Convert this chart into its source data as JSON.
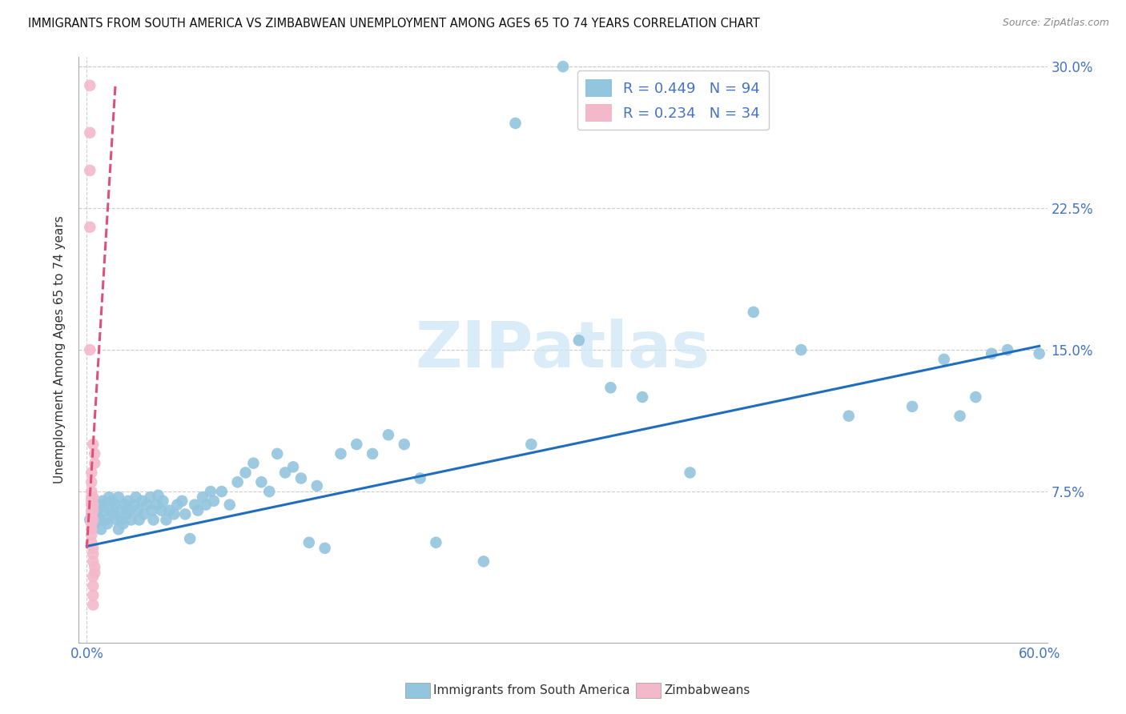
{
  "title": "IMMIGRANTS FROM SOUTH AMERICA VS ZIMBABWEAN UNEMPLOYMENT AMONG AGES 65 TO 74 YEARS CORRELATION CHART",
  "source": "Source: ZipAtlas.com",
  "ylabel": "Unemployment Among Ages 65 to 74 years",
  "legend1_label": "Immigrants from South America",
  "legend2_label": "Zimbabweans",
  "R_blue": 0.449,
  "N_blue": 94,
  "R_pink": 0.234,
  "N_pink": 34,
  "blue_color": "#92c5de",
  "pink_color": "#f4b8cb",
  "watermark_color": "#d0e8f5",
  "watermark_text": "ZIPatlas",
  "trend_blue_color": "#1f6dbf",
  "trend_pink_color": "#e0507a",
  "grid_color": "#cccccc",
  "axis_color": "#aaaaaa",
  "text_color": "#333333",
  "label_color": "#4472c4",
  "source_color": "#888888",
  "xlim": [
    0.0,
    0.6
  ],
  "ylim": [
    0.0,
    0.3
  ],
  "x_ticks": [
    0.0,
    0.6
  ],
  "x_tick_labels": [
    "0.0%",
    "60.0%"
  ],
  "y_ticks": [
    0.0,
    0.075,
    0.15,
    0.225,
    0.3
  ],
  "y_tick_labels": [
    "",
    "7.5%",
    "15.0%",
    "22.5%",
    "30.0%"
  ],
  "blue_trend_x": [
    0.0,
    0.6
  ],
  "blue_trend_y": [
    0.046,
    0.152
  ],
  "pink_trend_x": [
    0.0,
    0.018
  ],
  "pink_trend_y": [
    0.045,
    0.29
  ],
  "blue_x": [
    0.002,
    0.003,
    0.005,
    0.006,
    0.007,
    0.008,
    0.009,
    0.01,
    0.01,
    0.011,
    0.012,
    0.013,
    0.014,
    0.015,
    0.016,
    0.017,
    0.018,
    0.019,
    0.02,
    0.02,
    0.021,
    0.022,
    0.023,
    0.024,
    0.025,
    0.026,
    0.027,
    0.028,
    0.03,
    0.031,
    0.032,
    0.033,
    0.035,
    0.036,
    0.038,
    0.04,
    0.041,
    0.042,
    0.044,
    0.045,
    0.047,
    0.048,
    0.05,
    0.052,
    0.055,
    0.057,
    0.06,
    0.062,
    0.065,
    0.068,
    0.07,
    0.073,
    0.075,
    0.078,
    0.08,
    0.085,
    0.09,
    0.095,
    0.1,
    0.105,
    0.11,
    0.115,
    0.12,
    0.125,
    0.13,
    0.135,
    0.14,
    0.145,
    0.15,
    0.16,
    0.17,
    0.18,
    0.19,
    0.2,
    0.21,
    0.22,
    0.25,
    0.27,
    0.3,
    0.35,
    0.38,
    0.42,
    0.45,
    0.48,
    0.52,
    0.55,
    0.57,
    0.58,
    0.6,
    0.28,
    0.31,
    0.33,
    0.54,
    0.56
  ],
  "blue_y": [
    0.06,
    0.062,
    0.058,
    0.063,
    0.065,
    0.06,
    0.055,
    0.068,
    0.07,
    0.065,
    0.06,
    0.058,
    0.072,
    0.065,
    0.07,
    0.063,
    0.068,
    0.06,
    0.055,
    0.072,
    0.065,
    0.06,
    0.058,
    0.068,
    0.063,
    0.07,
    0.065,
    0.06,
    0.068,
    0.072,
    0.065,
    0.06,
    0.07,
    0.063,
    0.068,
    0.072,
    0.065,
    0.06,
    0.068,
    0.073,
    0.065,
    0.07,
    0.06,
    0.065,
    0.063,
    0.068,
    0.07,
    0.063,
    0.05,
    0.068,
    0.065,
    0.072,
    0.068,
    0.075,
    0.07,
    0.075,
    0.068,
    0.08,
    0.085,
    0.09,
    0.08,
    0.075,
    0.095,
    0.085,
    0.088,
    0.082,
    0.048,
    0.078,
    0.045,
    0.095,
    0.1,
    0.095,
    0.105,
    0.1,
    0.082,
    0.048,
    0.038,
    0.27,
    0.3,
    0.125,
    0.085,
    0.17,
    0.15,
    0.115,
    0.12,
    0.115,
    0.148,
    0.15,
    0.148,
    0.1,
    0.155,
    0.13,
    0.145,
    0.125
  ],
  "pink_x": [
    0.002,
    0.002,
    0.002,
    0.002,
    0.002,
    0.003,
    0.003,
    0.003,
    0.003,
    0.003,
    0.003,
    0.003,
    0.003,
    0.003,
    0.003,
    0.003,
    0.003,
    0.003,
    0.004,
    0.004,
    0.004,
    0.004,
    0.004,
    0.004,
    0.004,
    0.004,
    0.004,
    0.004,
    0.004,
    0.004,
    0.005,
    0.005,
    0.005,
    0.005
  ],
  "pink_y": [
    0.29,
    0.265,
    0.245,
    0.215,
    0.15,
    0.085,
    0.08,
    0.075,
    0.072,
    0.07,
    0.068,
    0.065,
    0.063,
    0.06,
    0.058,
    0.055,
    0.052,
    0.048,
    0.072,
    0.068,
    0.065,
    0.06,
    0.045,
    0.042,
    0.038,
    0.03,
    0.025,
    0.02,
    0.015,
    0.1,
    0.095,
    0.09,
    0.035,
    0.032
  ]
}
